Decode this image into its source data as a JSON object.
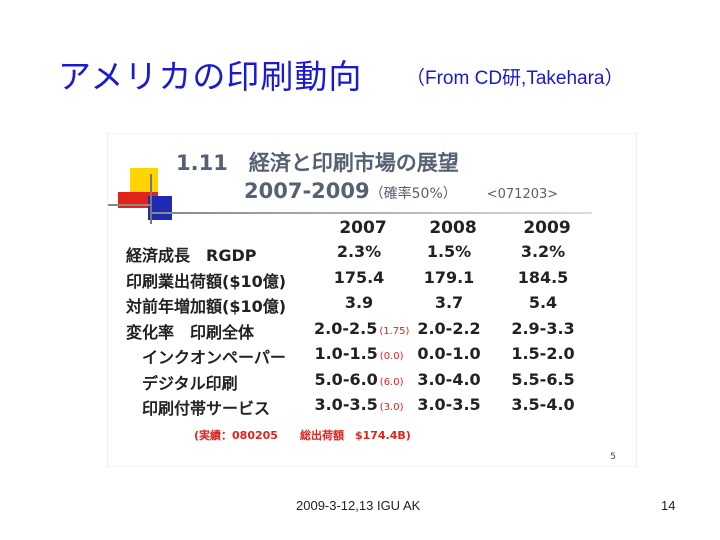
{
  "slide": {
    "title": "アメリカの印刷動向",
    "subtitle": "（From CD研,Takehara）",
    "footer": "2009-3-12,13 IGU AK",
    "page_number": "14"
  },
  "inner": {
    "heading": "1.11　経済と印刷市場の展望",
    "heading2": "2007-2009",
    "probability": "（確率50%）",
    "code": "<071203>",
    "inner_page": "5",
    "footnote": "(実績：080205　　総出荷額　$174.4B)",
    "table": {
      "columns": [
        "2007",
        "2008",
        "2009"
      ],
      "rows": [
        {
          "label": "経済成長　RGDP",
          "values": [
            "2.3%",
            "1.5%",
            "3.2%"
          ],
          "note": ""
        },
        {
          "label": "印刷業出荷額($10億)",
          "values": [
            "175.4",
            "179.1",
            "184.5"
          ],
          "note": ""
        },
        {
          "label": "対前年増加額($10億)",
          "values": [
            "3.9",
            "3.7",
            "5.4"
          ],
          "note": ""
        },
        {
          "label": "変化率　印刷全体",
          "values": [
            "2.0-2.5",
            "2.0-2.2",
            "2.9-3.3"
          ],
          "note": "(1.75)"
        },
        {
          "label": "　インクオンペーパー",
          "values": [
            "1.0-1.5",
            "0.0-1.0",
            "1.5-2.0"
          ],
          "note": "(0.0)"
        },
        {
          "label": "　デジタル印刷",
          "values": [
            "5.0-6.0",
            "3.0-4.0",
            "5.5-6.5"
          ],
          "note": "(6.0)"
        },
        {
          "label": "　印刷付帯サービス",
          "values": [
            "3.0-3.5",
            "3.0-3.5",
            "3.5-4.0"
          ],
          "note": "(3.0)"
        }
      ]
    }
  }
}
